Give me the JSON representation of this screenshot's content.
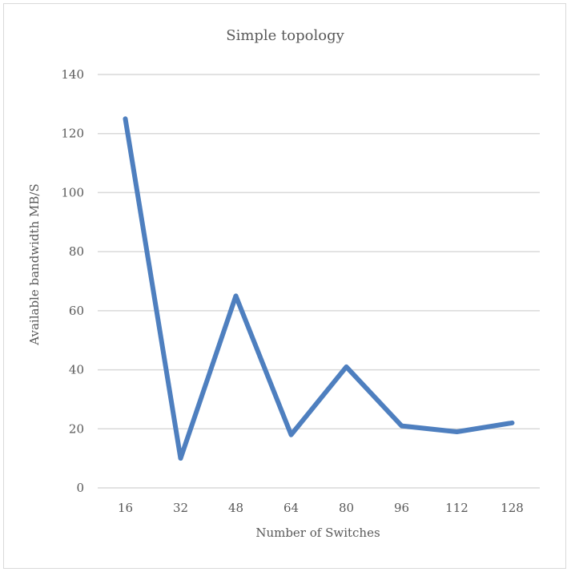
{
  "chart_data": {
    "type": "line",
    "title": "Simple topology",
    "xlabel": "Number of Switches",
    "ylabel": "Available  bandwidth MB/S",
    "categories": [
      "16",
      "32",
      "48",
      "64",
      "80",
      "96",
      "112",
      "128"
    ],
    "series": [
      {
        "values": [
          125,
          10,
          65,
          18,
          41,
          21,
          19,
          22
        ],
        "color": "#4e7fbf"
      }
    ],
    "ylim": [
      0,
      140
    ],
    "yticks": [
      "0",
      "20",
      "40",
      "60",
      "80",
      "100",
      "120",
      "140"
    ],
    "grid": true,
    "legend": "none"
  }
}
